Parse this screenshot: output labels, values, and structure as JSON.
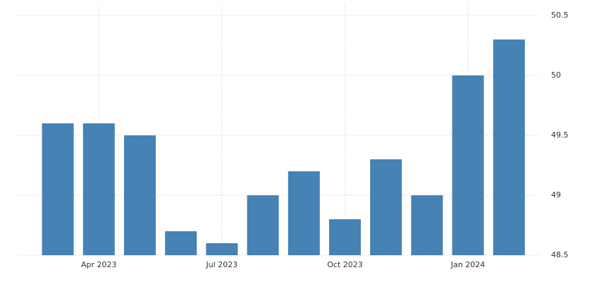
{
  "chart_data": {
    "type": "bar",
    "categories": [
      null,
      "Apr 2023",
      null,
      null,
      "Jul 2023",
      null,
      null,
      "Oct 2023",
      null,
      null,
      "Jan 2024",
      null
    ],
    "values": [
      49.6,
      49.6,
      49.5,
      48.7,
      48.6,
      49.0,
      49.2,
      48.8,
      49.3,
      49.0,
      50.0,
      50.3
    ],
    "color": "#4682b4",
    "ylim": [
      48.5,
      50.5
    ],
    "yticks": [
      48.5,
      49,
      49.5,
      50,
      50.5
    ],
    "grid": true
  }
}
